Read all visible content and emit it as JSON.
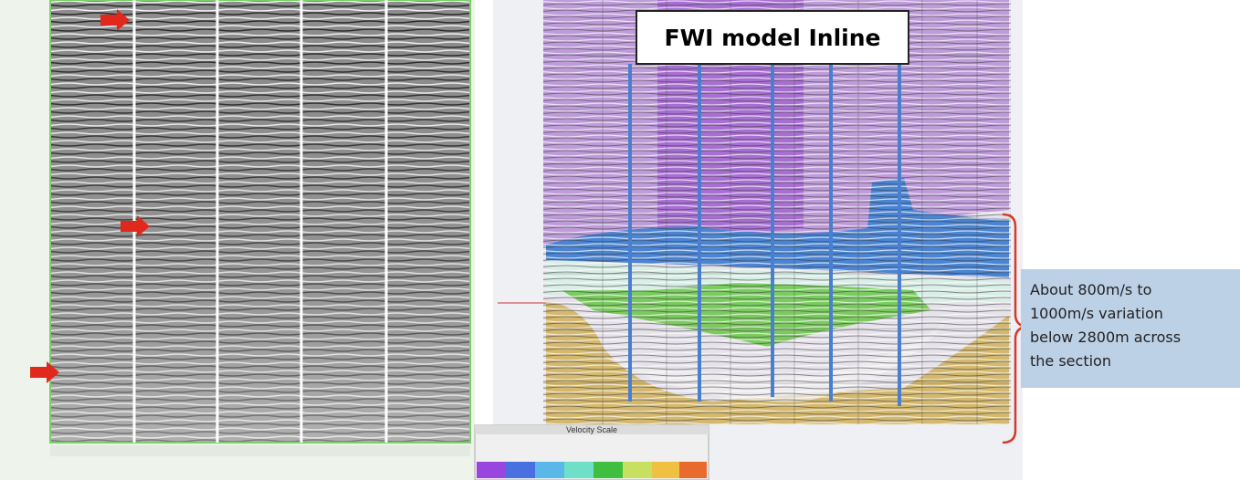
{
  "header": {
    "title": "FWI model Inline"
  },
  "callout": {
    "lines": [
      "About 800m/s to",
      "1000m/s variation",
      "below 2800m across",
      "the section"
    ]
  },
  "legend": {
    "title": "Velocity Scale"
  }
}
